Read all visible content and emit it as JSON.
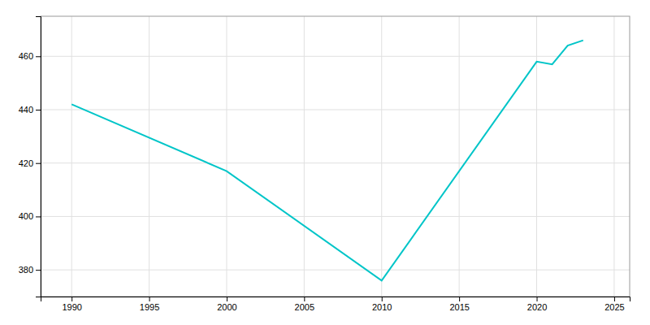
{
  "chart_data": {
    "type": "line",
    "x": [
      1990,
      2000,
      2010,
      2020,
      2021,
      2022,
      2023
    ],
    "values": [
      442,
      417,
      376,
      458,
      457,
      464,
      466
    ],
    "color": "#00C5C8",
    "xlim": [
      1988,
      2026
    ],
    "ylim": [
      370,
      475
    ],
    "xticks": [
      1990,
      1995,
      2000,
      2005,
      2010,
      2015,
      2020,
      2025
    ],
    "yticks": [
      380,
      400,
      420,
      440,
      460
    ],
    "grid": true
  }
}
